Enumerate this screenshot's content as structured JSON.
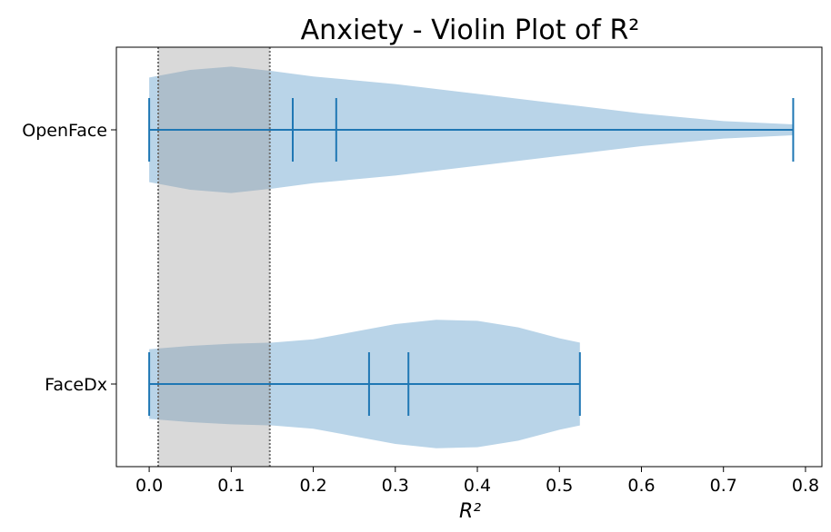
{
  "chart_data": {
    "type": "violin",
    "orientation": "horizontal",
    "title": "Anxiety - Violin Plot of R²",
    "xlabel": "R²",
    "ylabel": "",
    "xlim": [
      -0.04,
      0.82
    ],
    "xticks": [
      "0.0",
      "0.1",
      "0.2",
      "0.3",
      "0.4",
      "0.5",
      "0.6",
      "0.7",
      "0.8"
    ],
    "categories": [
      "OpenFace",
      "FaceDx"
    ],
    "colors": {
      "violin_fill": "#b9d4e8",
      "line": "#1f77b4",
      "band": "#d9d9d9",
      "band_edge": "#707070"
    },
    "shaded_band": {
      "x_start": 0.011,
      "x_end": 0.147
    },
    "series": [
      {
        "category": "OpenFace",
        "min": 0.0,
        "max": 0.785,
        "markers": [
          0.175,
          0.228
        ],
        "density": [
          [
            0.0,
            0.48
          ],
          [
            0.05,
            0.55
          ],
          [
            0.1,
            0.58
          ],
          [
            0.15,
            0.54
          ],
          [
            0.2,
            0.49
          ],
          [
            0.3,
            0.42
          ],
          [
            0.4,
            0.33
          ],
          [
            0.5,
            0.24
          ],
          [
            0.6,
            0.15
          ],
          [
            0.7,
            0.08
          ],
          [
            0.785,
            0.05
          ]
        ]
      },
      {
        "category": "FaceDx",
        "min": 0.0,
        "max": 0.525,
        "markers": [
          0.268,
          0.316
        ],
        "density": [
          [
            0.0,
            0.32
          ],
          [
            0.05,
            0.35
          ],
          [
            0.1,
            0.37
          ],
          [
            0.15,
            0.38
          ],
          [
            0.2,
            0.41
          ],
          [
            0.25,
            0.48
          ],
          [
            0.3,
            0.55
          ],
          [
            0.35,
            0.59
          ],
          [
            0.4,
            0.58
          ],
          [
            0.45,
            0.52
          ],
          [
            0.5,
            0.42
          ],
          [
            0.525,
            0.38
          ]
        ]
      }
    ]
  }
}
